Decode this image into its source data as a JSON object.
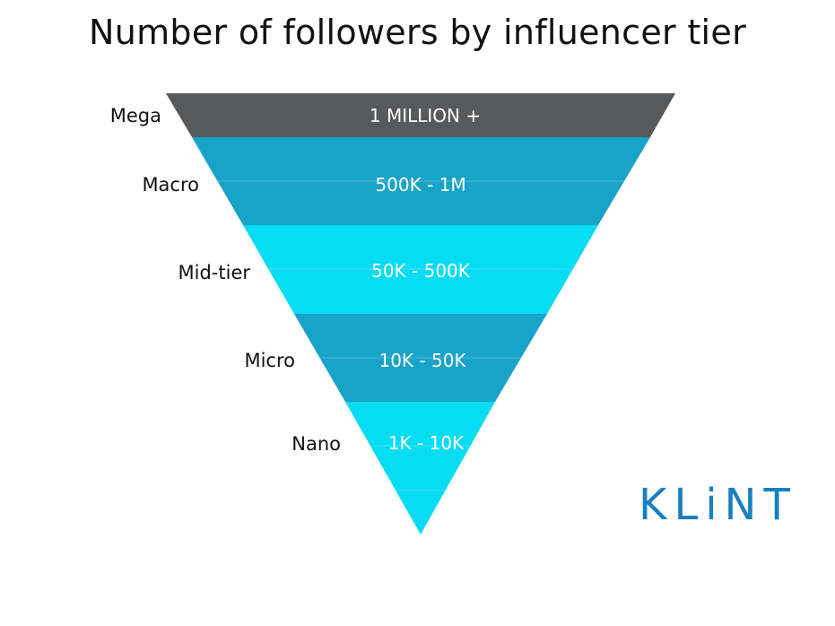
{
  "title": "Number of followers by influencer tier",
  "logo": "KLiNT",
  "tiers": [
    {
      "name": "Mega",
      "range": "1 MILLION +",
      "color": "#58595b"
    },
    {
      "name": "Macro",
      "range": "500K - 1M",
      "color": "#18a3c9"
    },
    {
      "name": "Mid-tier",
      "range": "50K - 500K",
      "color": "#06dcf2"
    },
    {
      "name": "Micro",
      "range": "10K - 50K",
      "color": "#18a3c9"
    },
    {
      "name": "Nano",
      "range": "1K - 10K",
      "color": "#06dcf2"
    }
  ]
}
